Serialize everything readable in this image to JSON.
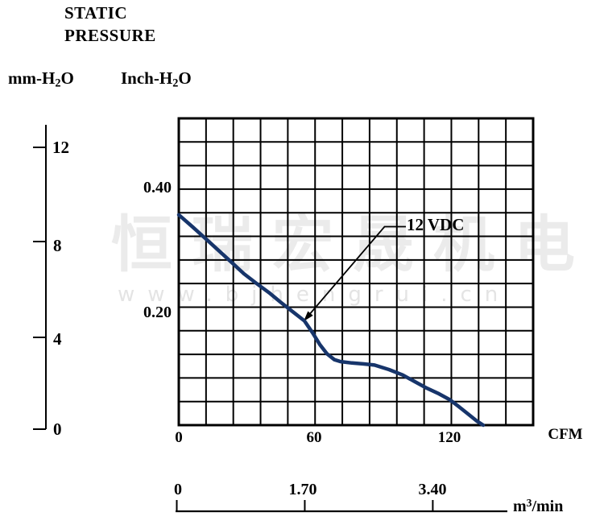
{
  "title": {
    "line1": "STATIC",
    "line2": "PRESSURE"
  },
  "axes": {
    "left_primary": {
      "unit_pre": "mm-H",
      "unit_sub": "2",
      "unit_post": "O",
      "ticks": [
        "0",
        "4",
        "8",
        "12"
      ]
    },
    "left_secondary": {
      "unit_pre": "Inch-H",
      "unit_sub": "2",
      "unit_post": "O",
      "labels": [
        "0.40",
        "0.20"
      ]
    },
    "bottom_primary": {
      "unit": "CFM",
      "ticks": [
        "0",
        "60",
        "120"
      ]
    },
    "bottom_secondary": {
      "unit_pre": "m",
      "unit_sup": "3",
      "unit_post": "/min",
      "ticks": [
        "0",
        "1.70",
        "3.40"
      ]
    }
  },
  "curve_label": "12 VDC",
  "watermark": {
    "line1": "恒瑞宏晟机电",
    "line2": "www.bjhengrui.cn"
  },
  "colors": {
    "curve": "#17356b",
    "grid": "#000000",
    "watermark": "#ebebeb"
  },
  "chart_data": {
    "type": "line",
    "title": "STATIC PRESSURE",
    "xlabel_primary": "CFM",
    "xlabel_secondary": "m3/min",
    "ylabel_primary": "mm-H2O",
    "ylabel_secondary": "Inch-H2O",
    "x_ticks_cfm": [
      0,
      60,
      120
    ],
    "x_ticks_m3min": [
      0,
      1.7,
      3.4
    ],
    "y_ticks_mm": [
      0,
      4,
      8,
      12
    ],
    "y_labels_inch": [
      0.4,
      0.2
    ],
    "xlim_cfm": [
      0,
      157
    ],
    "ylim_mm": [
      0,
      13.2
    ],
    "grid": {
      "cols": 13,
      "rows": 13,
      "on": true
    },
    "legend": "12 VDC",
    "legend_position": "inside-upper-right",
    "series": [
      {
        "name": "12 VDC",
        "points_cfm_mm": [
          [
            0,
            9.1
          ],
          [
            6,
            8.6
          ],
          [
            11.8,
            8.1
          ],
          [
            17.5,
            7.6
          ],
          [
            23.2,
            7.1
          ],
          [
            28.9,
            6.6
          ],
          [
            34.3,
            6.2
          ],
          [
            40,
            5.8
          ],
          [
            45,
            5.4
          ],
          [
            50.4,
            5.0
          ],
          [
            55.7,
            4.6
          ],
          [
            59.3,
            4.1
          ],
          [
            62.5,
            3.6
          ],
          [
            65.7,
            3.2
          ],
          [
            69,
            2.95
          ],
          [
            71.8,
            2.87
          ],
          [
            76.8,
            2.81
          ],
          [
            82.1,
            2.77
          ],
          [
            86.8,
            2.72
          ],
          [
            93.2,
            2.53
          ],
          [
            99.3,
            2.3
          ],
          [
            104.6,
            2.02
          ],
          [
            110,
            1.74
          ],
          [
            115.4,
            1.5
          ],
          [
            120,
            1.26
          ],
          [
            124.3,
            0.95
          ],
          [
            128.6,
            0.62
          ],
          [
            132.1,
            0.35
          ],
          [
            135,
            0.17
          ]
        ]
      }
    ]
  }
}
